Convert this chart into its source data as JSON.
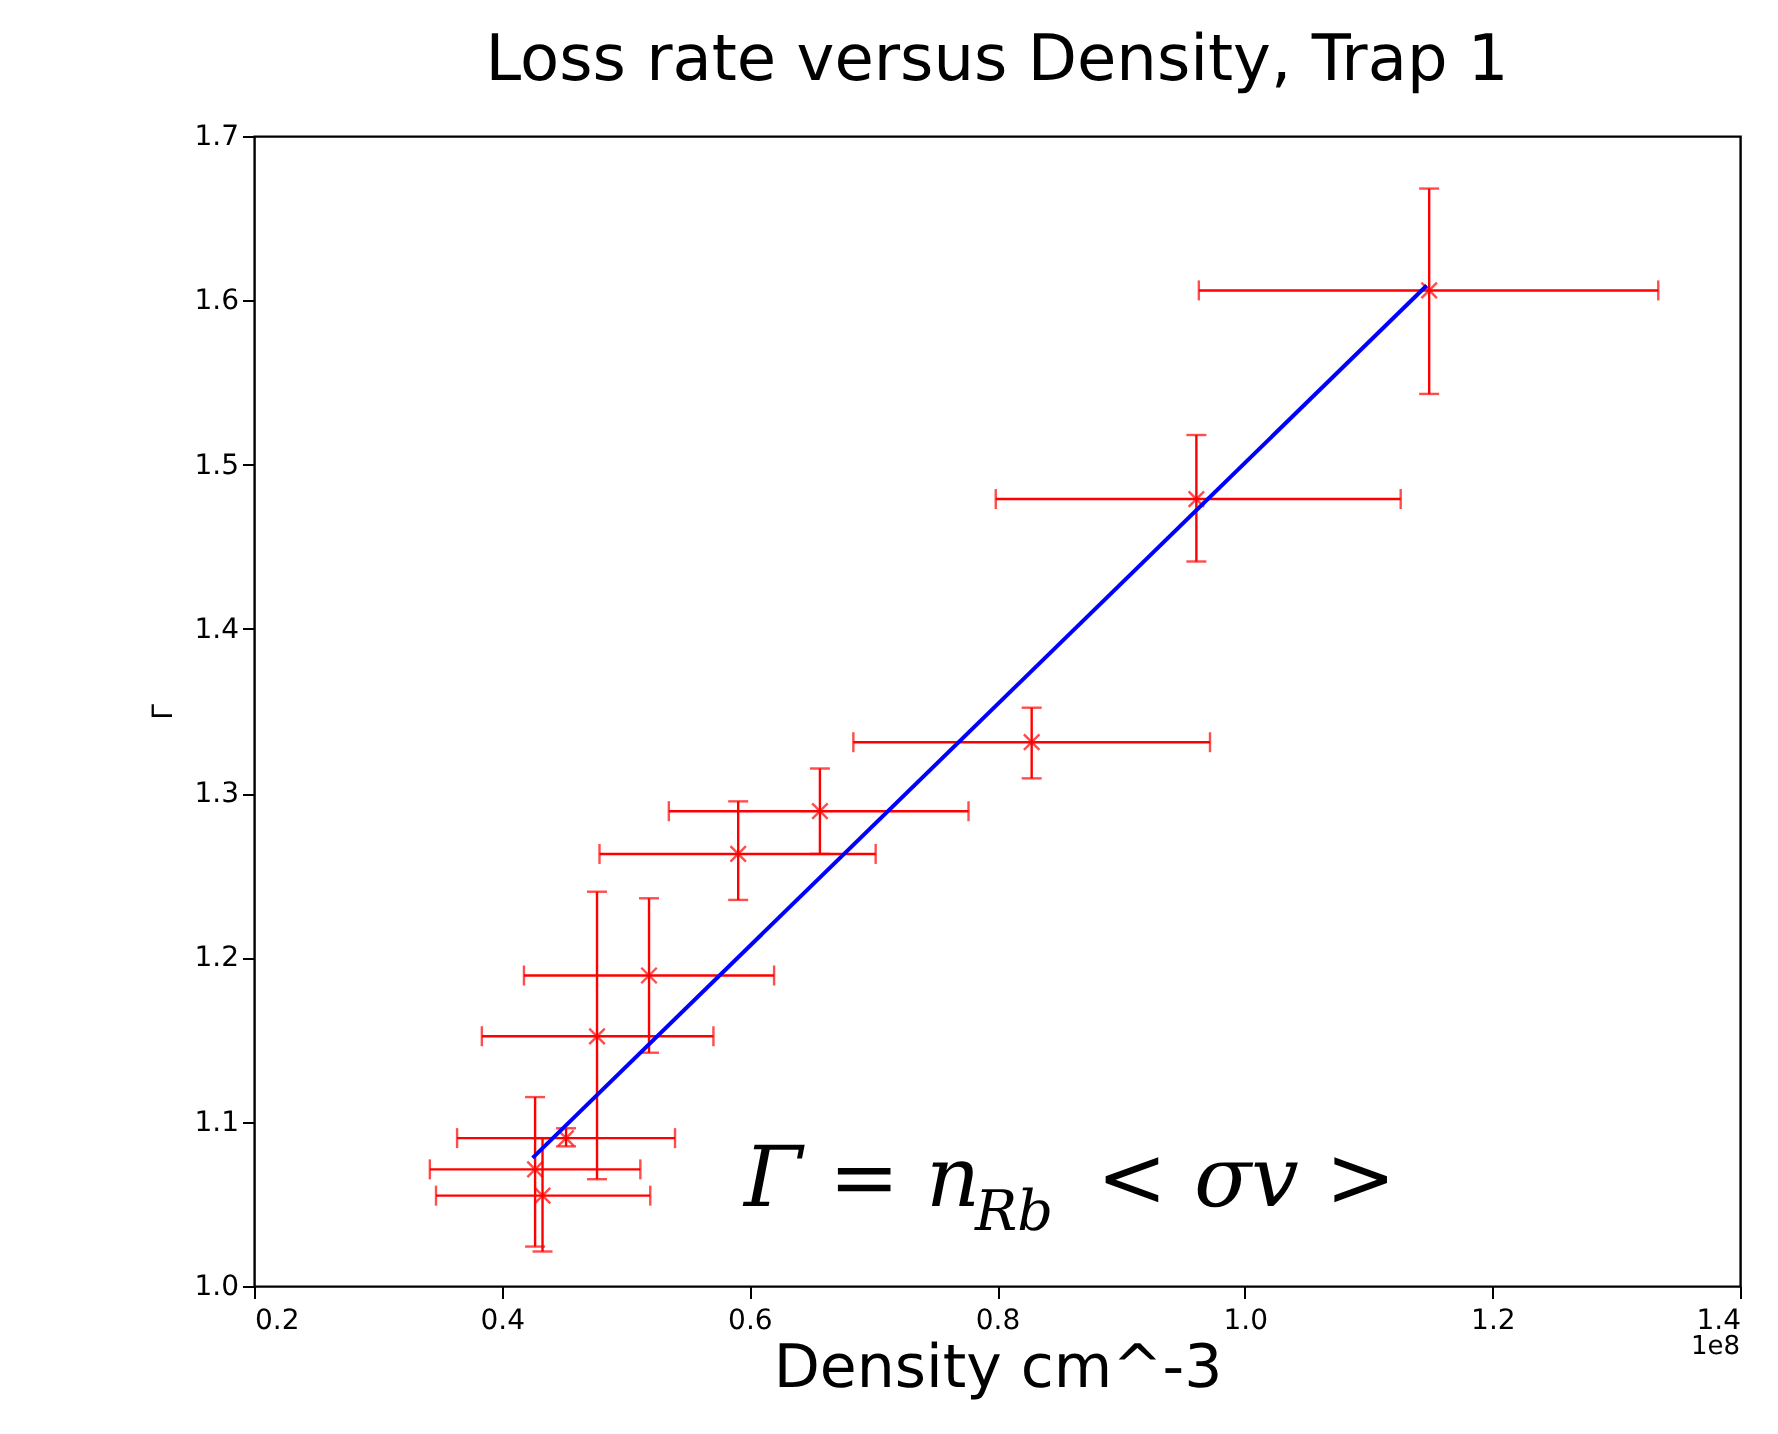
{
  "chart_data": {
    "type": "scatter",
    "title": "Loss rate versus Density, Trap 1",
    "xlabel": "Density cm^-3",
    "ylabel": "Γ",
    "xlim": [
      0.2,
      1.4
    ],
    "xticks": [
      0.2,
      0.4,
      0.6,
      0.8,
      {
        "value": 1.0,
        "label": "1.0"
      },
      1.2,
      1.4
    ],
    "ylim": [
      1.0,
      1.7
    ],
    "yticks": [
      {
        "value": 1.0,
        "label": "1.0"
      },
      1.1,
      1.2,
      1.3,
      1.4,
      1.5,
      1.6,
      1.7
    ],
    "grid": false,
    "legend": false,
    "marker": "cross",
    "annotations": [
      "Γ = n$_{Rb}$ < σv >",
      "1e8"
    ],
    "series": [
      {
        "color": "#ff0000",
        "x": [
          0.427,
          0.433,
          0.452,
          0.477,
          0.519,
          0.591,
          0.657,
          0.828,
          0.961,
          1.149
        ],
        "values": [
          1.071,
          1.055,
          1.09,
          1.152,
          1.189,
          1.263,
          1.289,
          1.331,
          1.479,
          1.606
        ],
        "errors": [
          [
            1.024,
            1.115
          ],
          [
            1.021,
            1.09
          ],
          [
            1.085,
            1.096
          ],
          [
            1.065,
            1.24
          ],
          [
            1.142,
            1.236
          ],
          [
            1.235,
            1.295
          ],
          [
            1.263,
            1.315
          ],
          [
            1.309,
            1.352
          ],
          [
            1.441,
            1.518
          ],
          [
            1.543,
            1.668
          ]
        ],
        "xerrors": [
          [
            0.342,
            0.512
          ],
          [
            0.347,
            0.52
          ],
          [
            0.364,
            0.54
          ],
          [
            0.384,
            0.571
          ],
          [
            0.418,
            0.62
          ],
          [
            0.479,
            0.702
          ],
          [
            0.535,
            0.777
          ],
          [
            0.684,
            0.972
          ],
          [
            0.799,
            1.126
          ],
          [
            0.963,
            1.334
          ]
        ]
      },
      {
        "type": "line",
        "color": "#0000ff",
        "line_style": "solid",
        "marker": "none",
        "x": [
          0.425,
          1.147
        ],
        "values": [
          1.078,
          1.609
        ]
      }
    ]
  }
}
